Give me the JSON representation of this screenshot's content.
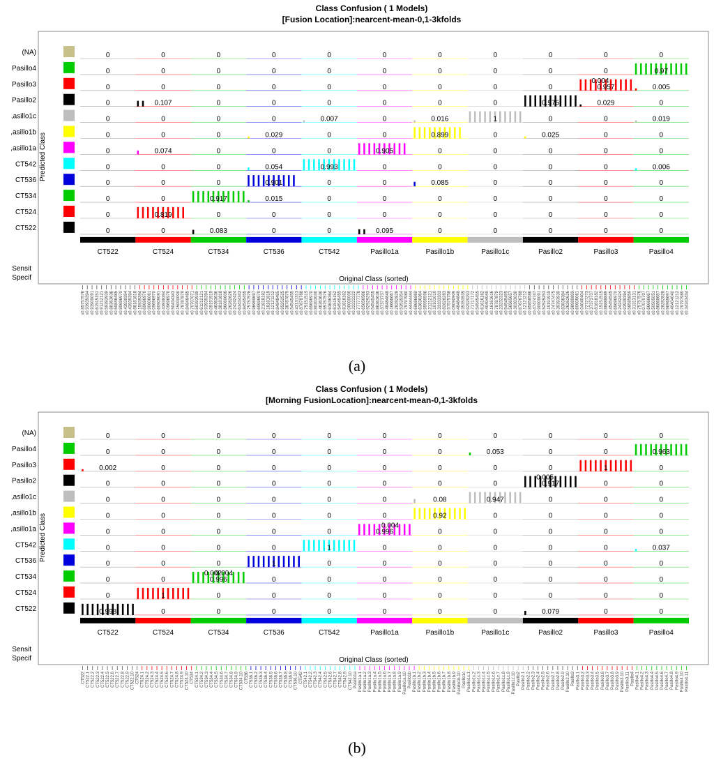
{
  "panels": [
    {
      "caption": "(a)",
      "chart_data": {
        "type": "bar",
        "title": "Class Confusion ( 1  Models)",
        "subtitle": "[Fusion Location]:nearcent-mean-0,1-3kfolds",
        "xlabel": "Original Class (sorted)",
        "ylabel": "Predicted Class",
        "original_classes": [
          "CT522",
          "CT524",
          "CT534",
          "CT536",
          "CT542",
          "Pasillo1a",
          "Pasillo1b",
          "Pasillo1c",
          "Pasillo2",
          "Pasillo3",
          "Pasillo4"
        ],
        "predicted_classes": [
          "(NA)",
          "Pasillo4",
          "Pasillo3",
          "Pasillo2",
          "Pasillo1c",
          "Pasillo1b",
          "Pasillo1a",
          "CT542",
          "CT536",
          "CT534",
          "CT524",
          "CT522"
        ],
        "predicted_labels_shown": [
          "(NA)",
          "Pasillo4",
          "Pasillo3",
          "Pasillo2",
          ",asillo1c",
          ",asillo1b",
          ",asillo1a",
          "CT542",
          "CT536",
          "CT534",
          "CT524",
          "CT522"
        ],
        "bottom_labels": [
          "Sensit",
          "Specif"
        ],
        "class_colors": [
          "#000000",
          "#ff0000",
          "#00cc00",
          "#0000dd",
          "#00ffff",
          "#ff00ff",
          "#ffff00",
          "#bebebe",
          "#000000",
          "#ff0000",
          "#00cc00"
        ],
        "predicted_colors": [
          "#c8c08a",
          "#00cc00",
          "#ff0000",
          "#000000",
          "#bebebe",
          "#ffff00",
          "#ff00ff",
          "#00ffff",
          "#0000dd",
          "#00cc00",
          "#ff0000",
          "#000000"
        ],
        "matrix": [
          [
            "0",
            "0",
            "0",
            "0",
            "0",
            "0",
            "0",
            "0",
            "0",
            "0",
            "0"
          ],
          [
            "0",
            "0",
            "0",
            "0",
            "0",
            "0",
            "0",
            "0",
            "0",
            "0",
            "0.97"
          ],
          [
            "0",
            "0",
            "0",
            "0",
            "0",
            "0",
            "0",
            "0",
            "0",
            "0.957",
            "0.005"
          ],
          [
            "0",
            "0.107",
            "0",
            "0",
            "0",
            "0",
            "0",
            "0",
            "0.975",
            "0.029",
            "0"
          ],
          [
            "0",
            "0",
            "0",
            "0",
            "0.007",
            "0",
            "0.016",
            "1",
            "0",
            "0",
            "0.019"
          ],
          [
            "0",
            "0",
            "0",
            "0.029",
            "0",
            "0",
            "0.899",
            "0",
            "0.025",
            "0",
            "0"
          ],
          [
            "0",
            "0.074",
            "0",
            "0",
            "0",
            "0.905",
            "0",
            "0",
            "0",
            "0",
            "0"
          ],
          [
            "0",
            "0",
            "0",
            "0.054",
            "0.993",
            "0",
            "0",
            "0",
            "0",
            "0",
            "0.006"
          ],
          [
            "0",
            "0",
            "0",
            "0.901",
            "0",
            "0",
            "0.085",
            "0",
            "0",
            "0",
            "0"
          ],
          [
            "0",
            "0",
            "0.917",
            "0.015",
            "0",
            "0",
            "0",
            "0",
            "0",
            "0",
            "0"
          ],
          [
            "0",
            "0.819",
            "0",
            "0",
            "0",
            "0",
            "0",
            "0",
            "0",
            "0",
            "0"
          ],
          [
            "0",
            "0",
            "0.083",
            "0",
            "0",
            "0.095",
            "0",
            "0",
            "0",
            "0",
            "0"
          ]
        ],
        "extra_labels": [
          {
            "row": 2,
            "col": 9,
            "text": "0.004"
          }
        ],
        "x_tick_labels": [
          "x0.85757576",
          "x0.93939394",
          "x0.93909091",
          "x0.61515151",
          "x0.91212121",
          "x0.59393939",
          "x0.86363636",
          "x0.59848485",
          "x0.89696970",
          "x0.43939394",
          "x0.43939394",
          "x0.88181818",
          "x0.15939394",
          "x0.69696970",
          "x0.90606061",
          "x0.09696970",
          "x0.60909091",
          "x0.43939394",
          "x0.09696970",
          "x0.50434343",
          "x0.15000000",
          "x0.78787879",
          "x0.84848485",
          "x0.70707071",
          "x0.59393939",
          "x0.61212121",
          "x0.93939394",
          "x0.09191919",
          "x0.46363636",
          "x0.38181818",
          "x0.86060606",
          "x0.26262626",
          "x0.24242424",
          "x0.63434343",
          "x0.84545455",
          "x0.75757576",
          "x0.96969697",
          "x0.69696970",
          "x0.21818182",
          "x0.18181818",
          "x0.12121212",
          "x0.84848485",
          "x0.95252525",
          "x0.38787879",
          "x0.54545455",
          "x0.43131313",
          "x0.87878788",
          "x0.75151515",
          "x0.69696970",
          "x0.80303030",
          "x0.46363636",
          "x0.55757576",
          "x0.63636364",
          "x0.61515152",
          "x0.54545455",
          "x0.81818182",
          "x0.00000000",
          "x0.22222222",
          "x0.77777778",
          "x0.65656566",
          "x0.92929293",
          "x0.54545455",
          "x0.86363636",
          "x0.37373737",
          "x0.48484848",
          "x0.16666667",
          "x0.28282828",
          "x0.53535354",
          "x0.79797980",
          "x0.44444444",
          "x0.68686869",
          "x0.63636364",
          "x0.95959596",
          "x0.21212121",
          "x0.10101010",
          "x0.33333333",
          "x0.82828283",
          "x0.57575758",
          "x0.09090909",
          "x0.48484848",
          "x0.35353535",
          "x0.92929293",
          "x0.71717172",
          "x0.54545455",
          "x0.61616162",
          "x0.40404040",
          "x0.16161616",
          "x0.78787879",
          "x0.23232323",
          "x0.94949495",
          "x0.56565657",
          "x0.30303030",
          "x0.67676768",
          "x0.12121212",
          "x0.85858586",
          "x0.47474747",
          "x0.90909091",
          "x0.52525253",
          "x0.19191919",
          "x0.74747475",
          "x0.39393939",
          "x0.83838384",
          "x0.26262626",
          "x0.98989899",
          "x0.60606061",
          "x0.04040404",
          "x0.72727273",
          "x0.37373737",
          "x0.81818182",
          "x0.15151515",
          "x0.88888889",
          "x0.45454545",
          "x0.69696970",
          "x0.24242424",
          "x0.93939394",
          "x0.58585859",
          "x0.31313131",
          "x0.75757576",
          "x0.07070707",
          "x0.66666667",
          "x0.50505051",
          "x0.86868687",
          "x0.28282828",
          "x0.96969697",
          "x0.40404040",
          "x0.12121212",
          "x0.79797980",
          "x0.34343434"
        ]
      }
    },
    {
      "caption": "(b)",
      "chart_data": {
        "type": "bar",
        "title": "Class Confusion ( 1  Models)",
        "subtitle": "[Morning FusionLocation]:nearcent-mean-0,1-3kfolds",
        "xlabel": "Original Class (sorted)",
        "ylabel": "Predicted Class",
        "original_classes": [
          "CT522",
          "CT524",
          "CT534",
          "CT536",
          "CT542",
          "Pasillo1a",
          "Pasillo1b",
          "Pasillo1c",
          "Pasillo2",
          "Pasillo3",
          "Pasillo4"
        ],
        "predicted_classes": [
          "(NA)",
          "Pasillo4",
          "Pasillo3",
          "Pasillo2",
          "Pasillo1c",
          "Pasillo1b",
          "Pasillo1a",
          "CT542",
          "CT536",
          "CT534",
          "CT524",
          "CT522"
        ],
        "predicted_labels_shown": [
          "(NA)",
          "Pasillo4",
          "Pasillo3",
          "Pasillo2",
          ",asillo1c",
          ",asillo1b",
          ",asillo1a",
          "CT542",
          "CT536",
          "CT534",
          "CT524",
          "CT522"
        ],
        "bottom_labels": [
          "Sensit",
          "Specif"
        ],
        "class_colors": [
          "#000000",
          "#ff0000",
          "#00cc00",
          "#0000dd",
          "#00ffff",
          "#ff00ff",
          "#ffff00",
          "#bebebe",
          "#000000",
          "#ff0000",
          "#00cc00"
        ],
        "predicted_colors": [
          "#c8c08a",
          "#00cc00",
          "#ff0000",
          "#000000",
          "#bebebe",
          "#ffff00",
          "#ff00ff",
          "#00ffff",
          "#0000dd",
          "#00cc00",
          "#ff0000",
          "#000000"
        ],
        "matrix": [
          [
            "0",
            "0",
            "0",
            "0",
            "0",
            "0",
            "0",
            "0",
            "0",
            "0",
            "0"
          ],
          [
            "0",
            "0",
            "0",
            "0",
            "0",
            "0",
            "0",
            "0.053",
            "0",
            "0",
            "0.963"
          ],
          [
            "0.002",
            "0",
            "0",
            "0",
            "0",
            "0",
            "0",
            "0",
            "0",
            "1",
            "0"
          ],
          [
            "0",
            "0",
            "0",
            "0",
            "0",
            "0",
            "0",
            "0",
            "0.917",
            "0",
            "0"
          ],
          [
            "0",
            "0",
            "0",
            "0",
            "0",
            "0",
            "0.08",
            "0.947",
            "0",
            "0",
            "0"
          ],
          [
            "0",
            "0",
            "0",
            "0",
            "0",
            "0",
            "0.92",
            "0",
            "0",
            "0",
            "0"
          ],
          [
            "0",
            "0",
            "0",
            "0",
            "0",
            "0.996",
            "0",
            "0",
            "0",
            "0",
            "0"
          ],
          [
            "0",
            "0",
            "0",
            "0",
            "1",
            "0",
            "0",
            "0",
            "0",
            "0",
            "0.037"
          ],
          [
            "0",
            "0",
            "0",
            "1",
            "0",
            "0",
            "0",
            "0",
            "0",
            "0",
            "0"
          ],
          [
            "0",
            "0",
            "0.996",
            "0",
            "0",
            "0",
            "0",
            "0",
            "0",
            "0",
            "0"
          ],
          [
            "0",
            "1",
            "0",
            "0",
            "0",
            "0",
            "0",
            "0",
            "0",
            "0",
            "0"
          ],
          [
            "0.998",
            "0",
            "0",
            "0",
            "0",
            "0",
            "0",
            "0",
            "0.079",
            "0",
            "0"
          ]
        ],
        "extra_labels": [
          {
            "row": 3,
            "col": 8,
            "text": "0.005"
          },
          {
            "row": 6,
            "col": 5,
            "text": "0.004"
          },
          {
            "row": 9,
            "col": 2,
            "text": "0.002"
          },
          {
            "row": 9,
            "col": 2,
            "text": "0.004"
          }
        ],
        "x_tick_labels": [
          "CT522",
          "CT522.1",
          "CT522.2",
          "CT522.3",
          "CT522.4",
          "CT522.5",
          "CT522.6",
          "CT522.7",
          "CT522.8",
          "CT522.9",
          "CT522.10",
          "CT524",
          "CT524.1",
          "CT524.2",
          "CT524.3",
          "CT524.4",
          "CT524.5",
          "CT524.6",
          "CT524.7",
          "CT524.8",
          "CT524.9",
          "CT524.10",
          "CT534",
          "CT534.1",
          "CT534.2",
          "CT534.3",
          "CT534.4",
          "CT534.5",
          "CT534.6",
          "CT534.7",
          "CT534.8",
          "CT534.9",
          "CT534.10",
          "CT536",
          "CT536.1",
          "CT536.2",
          "CT536.3",
          "CT536.4",
          "CT536.5",
          "CT536.6",
          "CT536.7",
          "CT536.8",
          "CT536.9",
          "CT536.10",
          "CT542",
          "CT542.1",
          "CT542.2",
          "CT542.3",
          "CT542.4",
          "CT542.5",
          "CT542.6",
          "CT542.7",
          "CT542.8",
          "CT542.9",
          "CT542.10",
          "Pasillo1a",
          "Pasillo1a.1",
          "Pasillo1a.2",
          "Pasillo1a.3",
          "Pasillo1a.4",
          "Pasillo1a.5",
          "Pasillo1a.6",
          "Pasillo1a.7",
          "Pasillo1a.8",
          "Pasillo1a.9",
          "Pasillo1a.10",
          "Pasillo1b",
          "Pasillo1b.1",
          "Pasillo1b.2",
          "Pasillo1b.3",
          "Pasillo1b.4",
          "Pasillo1b.5",
          "Pasillo1b.6",
          "Pasillo1b.7",
          "Pasillo1b.8",
          "Pasillo1b.9",
          "Pasillo1b.10",
          "Pasillo1c",
          "Pasillo1c.1",
          "Pasillo1c.2",
          "Pasillo1c.3",
          "Pasillo1c.4",
          "Pasillo1c.5",
          "Pasillo1c.6",
          "Pasillo1c.7",
          "Pasillo1c.8",
          "Pasillo1c.9",
          "Pasillo1c.10",
          "Pasillo2",
          "Pasillo2.1",
          "Pasillo2.2",
          "Pasillo2.3",
          "Pasillo2.4",
          "Pasillo2.5",
          "Pasillo2.6",
          "Pasillo2.7",
          "Pasillo2.8",
          "Pasillo2.9",
          "Pasillo2.10",
          "Pasillo3",
          "Pasillo3.1",
          "Pasillo3.2",
          "Pasillo3.3",
          "Pasillo3.4",
          "Pasillo3.5",
          "Pasillo3.6",
          "Pasillo3.7",
          "Pasillo3.8",
          "Pasillo3.9",
          "Pasillo3.10",
          "Pasillo3.11",
          "Pasillo4",
          "Pasillo4.1",
          "Pasillo4.2",
          "Pasillo4.3",
          "Pasillo4.4",
          "Pasillo4.5",
          "Pasillo4.6",
          "Pasillo4.7",
          "Pasillo4.8",
          "Pasillo4.9",
          "Pasillo4.10",
          "Pasillo4.11"
        ]
      }
    }
  ]
}
